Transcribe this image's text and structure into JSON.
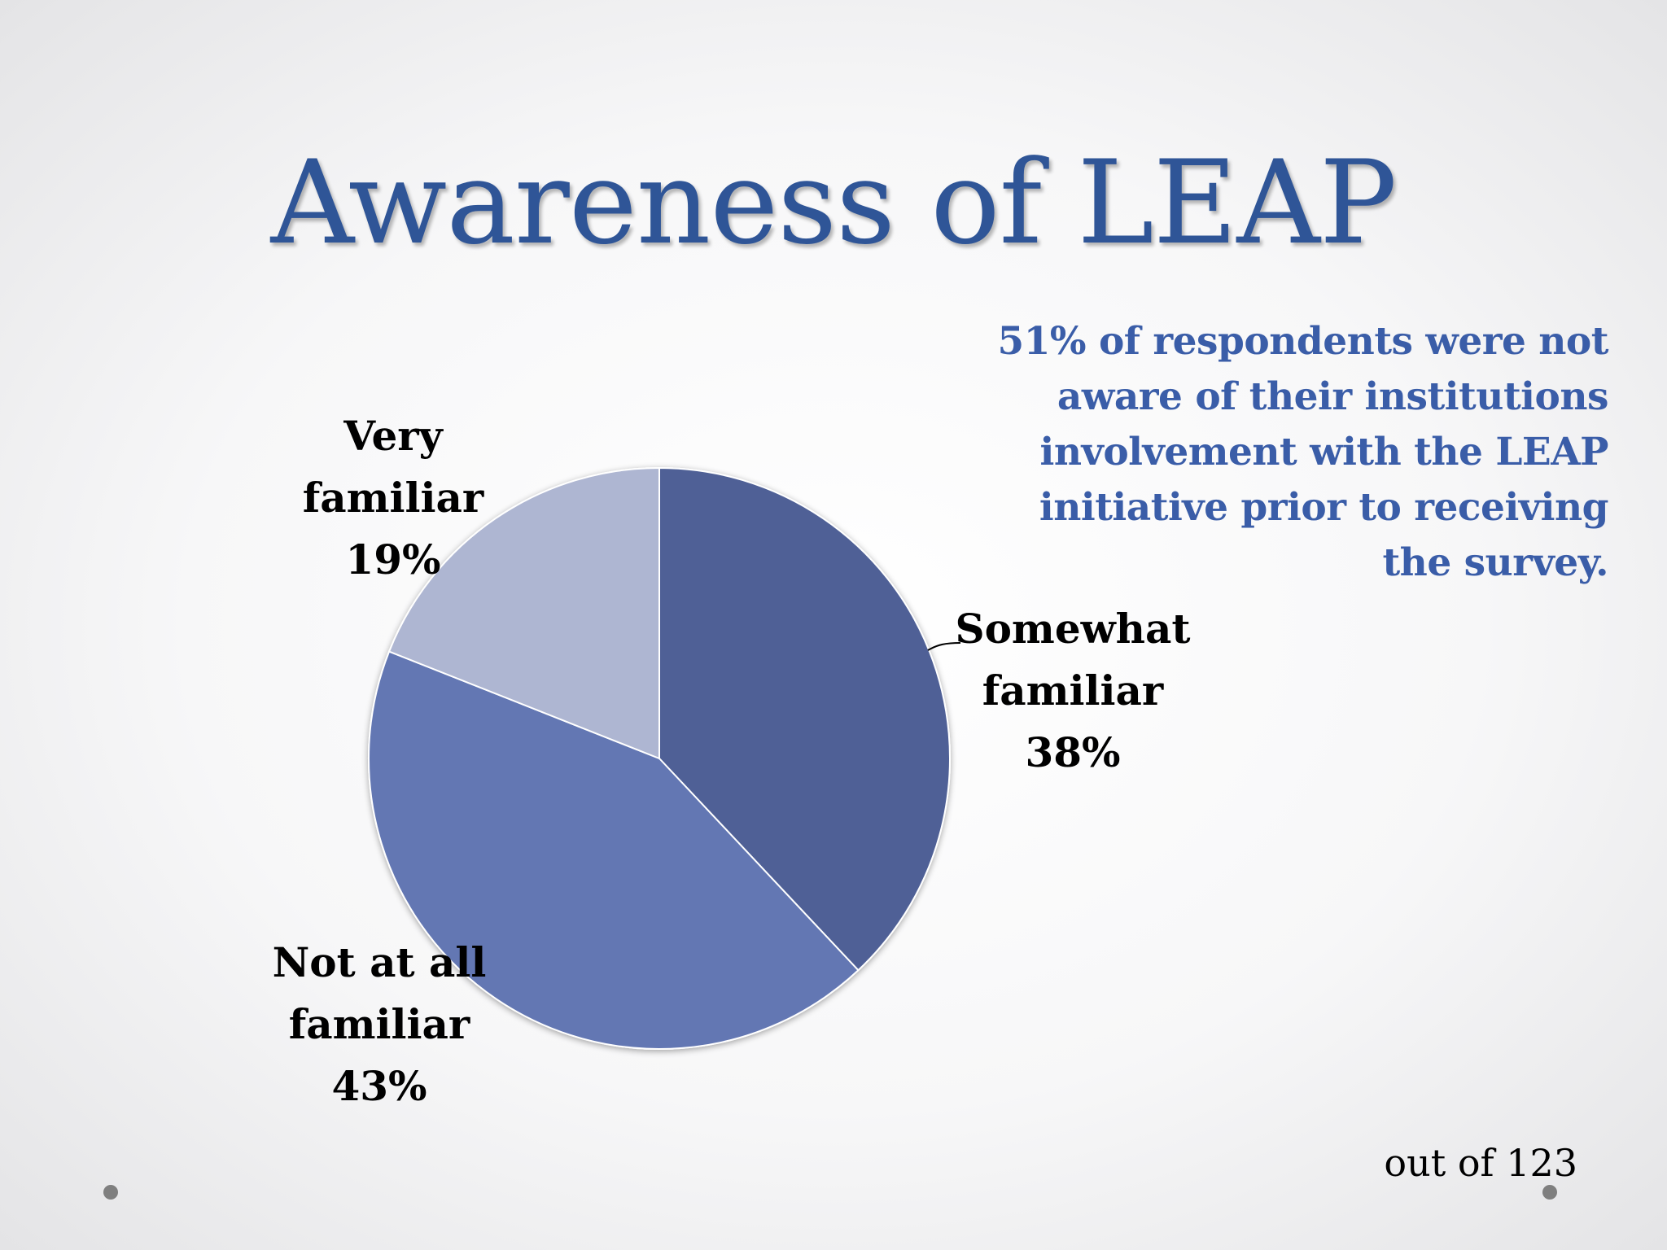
{
  "slide": {
    "title": "Awareness of LEAP",
    "callout": "51% of respondents were not aware of their institutions involvement with the LEAP initiative prior to receiving the survey.",
    "footnote": "out of 123"
  },
  "chart_data": {
    "type": "pie",
    "categories": [
      "Somewhat familiar",
      "Not at all familiar",
      "Very familiar"
    ],
    "values": [
      38,
      43,
      19
    ],
    "unit": "%",
    "labels": [
      [
        "Somewhat",
        "familiar",
        "38%"
      ],
      [
        "Not at all",
        "familiar",
        "43%"
      ],
      [
        "Very",
        "familiar",
        "19%"
      ]
    ],
    "colors": [
      "#4f6096",
      "#6377b3",
      "#aeb6d2"
    ],
    "start_angle_deg": 0,
    "direction": "clockwise"
  }
}
